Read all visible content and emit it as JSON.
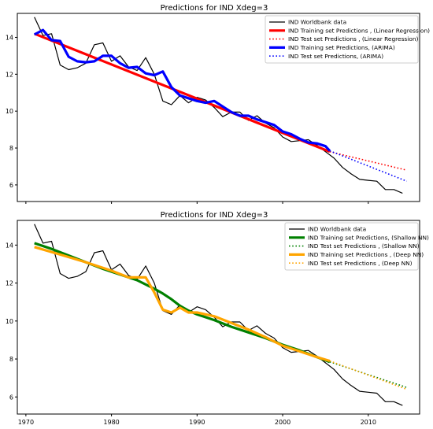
{
  "chart_data": [
    {
      "type": "line",
      "title": "Predictions for IND  Xdeg=3",
      "xlabel": "",
      "ylabel": "",
      "xlim": [
        1969,
        2016
      ],
      "ylim": [
        5.1,
        15.3
      ],
      "yticks": [
        6,
        8,
        10,
        12,
        14
      ],
      "xticks": [
        1970,
        1980,
        1990,
        2000,
        2010
      ],
      "xtick_labels_shown": false,
      "grid": false,
      "legend": "top-right",
      "series": [
        {
          "name": "IND Worldbank data",
          "color": "#000000",
          "style": "solid",
          "x": [
            1971,
            1972,
            1973,
            1974,
            1975,
            1976,
            1977,
            1978,
            1979,
            1980,
            1981,
            1982,
            1983,
            1984,
            1985,
            1986,
            1987,
            1988,
            1989,
            1990,
            1991,
            1992,
            1993,
            1994,
            1995,
            1996,
            1997,
            1998,
            1999,
            2000,
            2001,
            2002,
            2003,
            2004,
            2005,
            2006,
            2007,
            2008,
            2009,
            2010,
            2011,
            2012,
            2013,
            2014
          ],
          "values": [
            15.1,
            14.1,
            14.2,
            12.5,
            12.25,
            12.35,
            12.6,
            13.6,
            13.7,
            12.7,
            13.0,
            12.4,
            12.2,
            12.9,
            12.0,
            10.55,
            10.35,
            10.85,
            10.45,
            10.75,
            10.6,
            10.2,
            9.7,
            9.95,
            9.95,
            9.5,
            9.75,
            9.35,
            9.1,
            8.6,
            8.35,
            8.4,
            8.45,
            8.15,
            7.8,
            7.45,
            6.95,
            6.6,
            6.3,
            6.25,
            6.2,
            5.75,
            5.75,
            5.55
          ]
        },
        {
          "name": "IND Training set Predictions , (Linear Regression)",
          "color": "#ff0000",
          "style": "thick",
          "x": [
            1971,
            2005.5
          ],
          "values": [
            14.2,
            7.8
          ]
        },
        {
          "name": "IND Test set Predictions , (Linear Regression)",
          "color": "#ff0000",
          "style": "dotted",
          "x": [
            2005.5,
            2014.5
          ],
          "values": [
            7.8,
            6.8
          ]
        },
        {
          "name": "IND Training set Predictions, (ARIMA)",
          "color": "#0000ff",
          "style": "thick",
          "x": [
            1971,
            1972,
            1973,
            1974,
            1975,
            1976,
            1977,
            1978,
            1979,
            1980,
            1981,
            1982,
            1983,
            1984,
            1985,
            1986,
            1987,
            1988,
            1989,
            1990,
            1991,
            1992,
            1993,
            1994,
            1995,
            1996,
            1997,
            1998,
            1999,
            2000,
            2001,
            2002,
            2003,
            2004,
            2005,
            2005.5
          ],
          "values": [
            14.15,
            14.4,
            13.85,
            13.8,
            12.95,
            12.7,
            12.65,
            12.7,
            13.0,
            13.0,
            12.6,
            12.35,
            12.4,
            12.05,
            11.95,
            12.15,
            11.3,
            10.85,
            10.7,
            10.55,
            10.45,
            10.55,
            10.25,
            9.95,
            9.75,
            9.75,
            9.55,
            9.4,
            9.25,
            8.9,
            8.75,
            8.5,
            8.3,
            8.25,
            8.1,
            7.85
          ]
        },
        {
          "name": "IND Test set Predictions, (ARIMA)",
          "color": "#0000ff",
          "style": "dotted",
          "x": [
            2005.5,
            2014.5
          ],
          "values": [
            7.85,
            6.2
          ]
        }
      ]
    },
    {
      "type": "line",
      "title": "Predictions for IND  Xdeg=3",
      "xlabel": "",
      "ylabel": "",
      "xlim": [
        1969,
        2016
      ],
      "ylim": [
        5.1,
        15.3
      ],
      "yticks": [
        6,
        8,
        10,
        12,
        14
      ],
      "xticks": [
        1970,
        1980,
        1990,
        2000,
        2010
      ],
      "xtick_labels_shown": true,
      "grid": false,
      "legend": "top-right",
      "series": [
        {
          "name": "IND Worldbank data",
          "color": "#000000",
          "style": "solid",
          "x": [
            1971,
            1972,
            1973,
            1974,
            1975,
            1976,
            1977,
            1978,
            1979,
            1980,
            1981,
            1982,
            1983,
            1984,
            1985,
            1986,
            1987,
            1988,
            1989,
            1990,
            1991,
            1992,
            1993,
            1994,
            1995,
            1996,
            1997,
            1998,
            1999,
            2000,
            2001,
            2002,
            2003,
            2004,
            2005,
            2006,
            2007,
            2008,
            2009,
            2010,
            2011,
            2012,
            2013,
            2014
          ],
          "values": [
            15.1,
            14.1,
            14.2,
            12.5,
            12.25,
            12.35,
            12.6,
            13.6,
            13.7,
            12.7,
            13.0,
            12.4,
            12.2,
            12.9,
            12.0,
            10.55,
            10.35,
            10.85,
            10.45,
            10.75,
            10.6,
            10.2,
            9.7,
            9.95,
            9.95,
            9.5,
            9.75,
            9.35,
            9.1,
            8.6,
            8.35,
            8.4,
            8.45,
            8.15,
            7.8,
            7.45,
            6.95,
            6.6,
            6.3,
            6.25,
            6.2,
            5.75,
            5.75,
            5.55
          ]
        },
        {
          "name": "IND Training set Predictions, (Shallow NN)",
          "color": "#008000",
          "style": "thick",
          "x": [
            1971,
            1973,
            1975,
            1977,
            1979,
            1981,
            1983,
            1985,
            1986,
            1987,
            1988,
            1989,
            1990,
            1992,
            1994,
            1996,
            1998,
            2000,
            2002,
            2004,
            2005.5
          ],
          "values": [
            14.1,
            13.8,
            13.45,
            13.1,
            12.75,
            12.45,
            12.15,
            11.7,
            11.45,
            11.15,
            10.8,
            10.55,
            10.35,
            10.05,
            9.7,
            9.4,
            9.1,
            8.75,
            8.45,
            8.1,
            7.85
          ]
        },
        {
          "name": "IND Test set Predictions , (Shallow NN)",
          "color": "#008000",
          "style": "dotted",
          "x": [
            2005.5,
            2014.5
          ],
          "values": [
            7.85,
            6.5
          ]
        },
        {
          "name": "IND Training set Predictions , (Deep NN)",
          "color": "#ffa500",
          "style": "thick",
          "x": [
            1971,
            1974,
            1977,
            1980,
            1982,
            1984,
            1985,
            1986,
            1987,
            1988,
            1989,
            1990,
            1992,
            1994,
            1996,
            1998,
            2000,
            2002,
            2004,
            2005.5
          ],
          "values": [
            13.9,
            13.5,
            13.1,
            12.65,
            12.3,
            12.3,
            11.5,
            10.6,
            10.45,
            10.7,
            10.45,
            10.45,
            10.25,
            9.9,
            9.55,
            9.15,
            8.7,
            8.4,
            8.1,
            7.9
          ]
        },
        {
          "name": "IND Test set Predictions , (Deep NN)",
          "color": "#ffa500",
          "style": "dotted",
          "x": [
            2005.5,
            2014.5
          ],
          "values": [
            7.9,
            6.4
          ]
        }
      ]
    }
  ]
}
